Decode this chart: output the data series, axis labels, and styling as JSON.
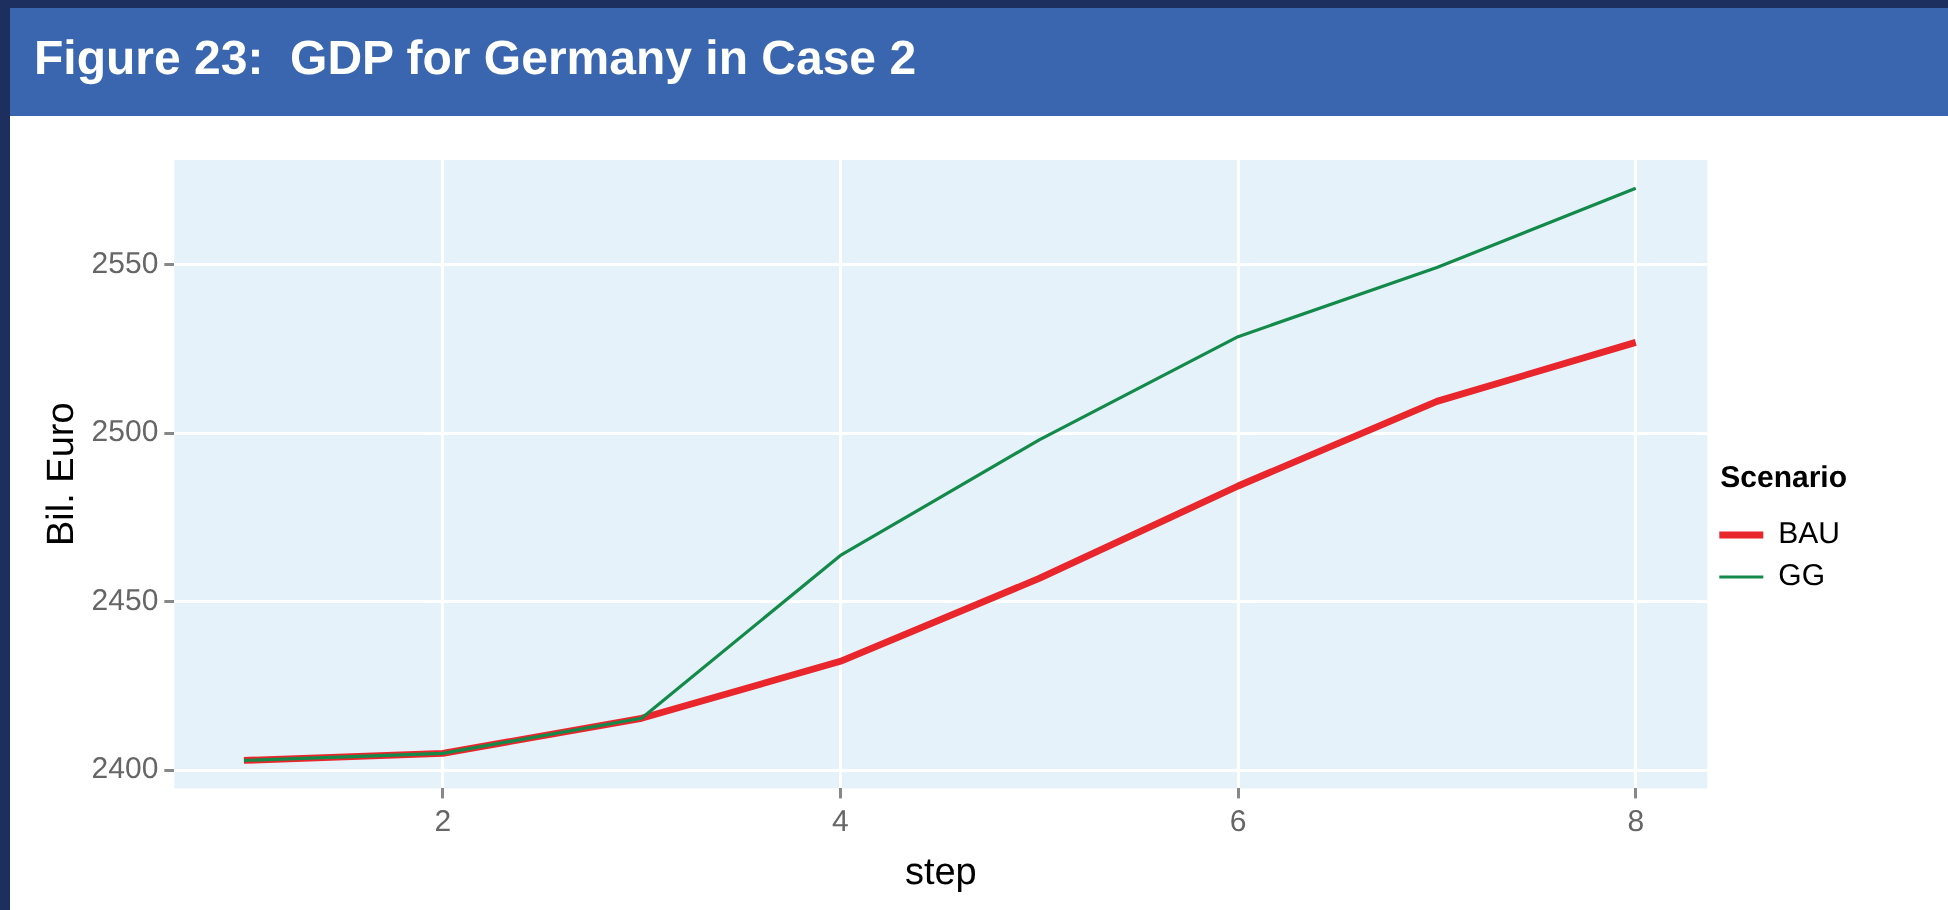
{
  "chart_data": {
    "type": "line",
    "title": "Figure 23:  GDP for Germany in Case 2",
    "xlabel": "step",
    "ylabel": "Bil. Euro",
    "legend_title": "Scenario",
    "x": [
      1,
      2,
      3,
      4,
      5,
      6,
      7,
      8
    ],
    "series": [
      {
        "name": "BAU",
        "color": "#e8262b",
        "values": [
          2402.9,
          2405,
          2415.4,
          2432.3,
          2456.9,
          2484.3,
          2509.4,
          2526.9
        ]
      },
      {
        "name": "GG",
        "color": "#138a4a",
        "values": [
          2402.9,
          2405,
          2415.4,
          2463.7,
          2498,
          2528.6,
          2549.1,
          2572.6
        ]
      }
    ],
    "xlim": [
      0.65,
      8.36
    ],
    "xticks": [
      2,
      4,
      6,
      8
    ],
    "ylim": [
      2394.6,
      2581
    ],
    "yticks": [
      2400,
      2450,
      2500,
      2550
    ],
    "grid": true,
    "legend": "right",
    "marker": "none",
    "line_style": "solid"
  }
}
